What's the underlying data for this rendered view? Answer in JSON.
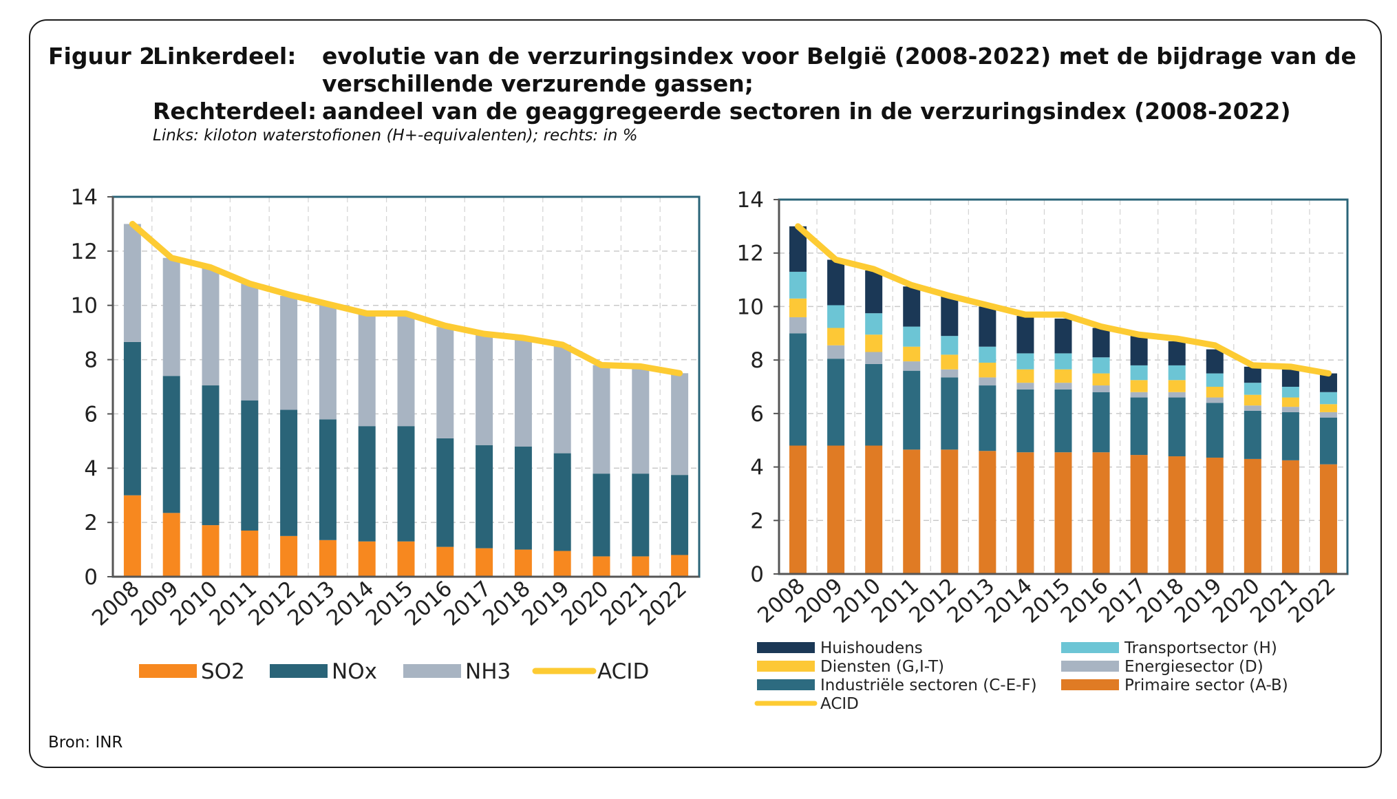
{
  "caption": {
    "figure": "Figuur 2",
    "left_label": "Linkerdeel:",
    "left_text_line1": "evolutie van de verzuringsindex voor België (2008-2022) met de bijdrage van de",
    "left_text_line2": "verschillende verzurende gassen;",
    "right_label": "Rechterdeel:",
    "right_text": "aandeel van de geaggregeerde sectoren in de verzuringsindex (2008-2022)",
    "units": "Links: kiloton waterstofionen (H+-equivalenten); rechts: in %"
  },
  "source": "Bron: INR",
  "chart_data": [
    {
      "type": "bar",
      "stacked": true,
      "title": "",
      "xlabel": "",
      "ylabel": "",
      "ylim": [
        0,
        14
      ],
      "yticks": [
        0,
        2,
        4,
        6,
        8,
        10,
        12,
        14
      ],
      "grid": true,
      "legend_position": "bottom",
      "categories": [
        "2008",
        "2009",
        "2010",
        "2011",
        "2012",
        "2013",
        "2014",
        "2015",
        "2016",
        "2017",
        "2018",
        "2019",
        "2020",
        "2021",
        "2022"
      ],
      "series": [
        {
          "name": "SO2",
          "kind": "bar",
          "color": "#F7881F",
          "values": [
            3.0,
            2.35,
            1.9,
            1.7,
            1.5,
            1.35,
            1.3,
            1.3,
            1.1,
            1.05,
            1.0,
            0.95,
            0.75,
            0.75,
            0.8
          ]
        },
        {
          "name": "NOx",
          "kind": "bar",
          "color": "#2A6478",
          "values": [
            5.65,
            5.05,
            5.15,
            4.8,
            4.65,
            4.45,
            4.25,
            4.25,
            4.0,
            3.8,
            3.8,
            3.6,
            3.05,
            3.05,
            2.95
          ]
        },
        {
          "name": "NH3",
          "kind": "bar",
          "color": "#A8B4C2",
          "values": [
            4.35,
            4.35,
            4.35,
            4.3,
            4.2,
            4.25,
            4.15,
            4.15,
            4.1,
            4.05,
            4.0,
            4.0,
            4.0,
            3.9,
            3.75
          ]
        },
        {
          "name": "ACID",
          "kind": "line",
          "color": "#FDCB33",
          "values": [
            13.0,
            11.75,
            11.4,
            10.8,
            10.4,
            10.05,
            9.7,
            9.7,
            9.25,
            8.95,
            8.8,
            8.55,
            7.8,
            7.75,
            7.5
          ]
        }
      ]
    },
    {
      "type": "bar",
      "stacked": true,
      "title": "",
      "xlabel": "",
      "ylabel": "",
      "ylim": [
        0,
        14
      ],
      "yticks": [
        0,
        2,
        4,
        6,
        8,
        10,
        12,
        14
      ],
      "grid": true,
      "legend_position": "bottom",
      "categories": [
        "2008",
        "2009",
        "2010",
        "2011",
        "2012",
        "2013",
        "2014",
        "2015",
        "2016",
        "2017",
        "2018",
        "2019",
        "2020",
        "2021",
        "2022"
      ],
      "series": [
        {
          "name": "Primaire sector (A-B)",
          "kind": "bar",
          "color": "#E07B24",
          "values": [
            4.8,
            4.8,
            4.8,
            4.65,
            4.65,
            4.6,
            4.55,
            4.55,
            4.55,
            4.45,
            4.4,
            4.35,
            4.3,
            4.25,
            4.1
          ]
        },
        {
          "name": "Industriële sectoren (C-E-F)",
          "kind": "bar",
          "color": "#2D6B80",
          "values": [
            4.2,
            3.25,
            3.05,
            2.95,
            2.7,
            2.45,
            2.35,
            2.35,
            2.25,
            2.15,
            2.2,
            2.05,
            1.8,
            1.8,
            1.75
          ]
        },
        {
          "name": "Energiesector (D)",
          "kind": "bar",
          "color": "#A8B4C2",
          "values": [
            0.6,
            0.5,
            0.45,
            0.35,
            0.3,
            0.3,
            0.25,
            0.25,
            0.25,
            0.2,
            0.2,
            0.2,
            0.2,
            0.2,
            0.2
          ]
        },
        {
          "name": "Diensten (G,I-T)",
          "kind": "bar",
          "color": "#FDC836",
          "values": [
            0.7,
            0.65,
            0.65,
            0.55,
            0.55,
            0.55,
            0.5,
            0.5,
            0.45,
            0.45,
            0.45,
            0.4,
            0.4,
            0.35,
            0.3
          ]
        },
        {
          "name": "Transportsector (H)",
          "kind": "bar",
          "color": "#6CC5D5",
          "values": [
            1.0,
            0.85,
            0.8,
            0.75,
            0.7,
            0.6,
            0.6,
            0.6,
            0.6,
            0.55,
            0.55,
            0.5,
            0.45,
            0.4,
            0.45
          ]
        },
        {
          "name": "Huishoudens",
          "kind": "bar",
          "color": "#1B3856",
          "values": [
            1.7,
            1.7,
            1.6,
            1.5,
            1.5,
            1.5,
            1.4,
            1.3,
            1.1,
            1.1,
            0.9,
            0.9,
            0.6,
            0.7,
            0.7
          ]
        },
        {
          "name": "ACID",
          "kind": "line",
          "color": "#FDCB33",
          "values": [
            13.0,
            11.75,
            11.4,
            10.8,
            10.4,
            10.05,
            9.7,
            9.7,
            9.25,
            8.95,
            8.8,
            8.55,
            7.8,
            7.75,
            7.5
          ]
        }
      ],
      "legend_order": [
        "Huishoudens",
        "Transportsector (H)",
        "Diensten (G,I-T)",
        "Energiesector (D)",
        "Industriële sectoren (C-E-F)",
        "Primaire sector (A-B)",
        "ACID"
      ]
    }
  ]
}
